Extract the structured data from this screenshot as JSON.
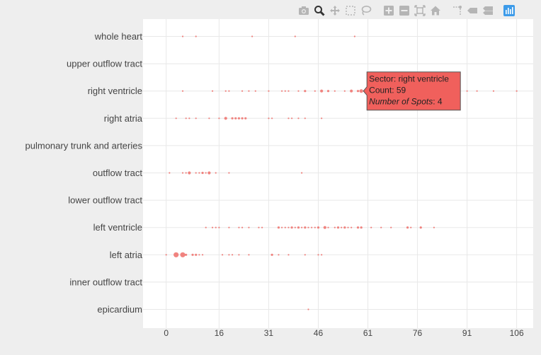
{
  "modebar": {
    "buttons": [
      {
        "name": "camera-icon",
        "title": "Download plot as a png",
        "active": false
      },
      {
        "name": "zoom-icon",
        "title": "Zoom",
        "active": true
      },
      {
        "name": "pan-icon",
        "title": "Pan",
        "active": false
      },
      {
        "name": "box-select-icon",
        "title": "Box Select",
        "active": false
      },
      {
        "name": "lasso-select-icon",
        "title": "Lasso Select",
        "active": false
      },
      {
        "name": "zoom-in-icon",
        "title": "Zoom in",
        "active": false
      },
      {
        "name": "zoom-out-icon",
        "title": "Zoom out",
        "active": false
      },
      {
        "name": "autoscale-icon",
        "title": "Autoscale",
        "active": false
      },
      {
        "name": "reset-axes-icon",
        "title": "Reset axes",
        "active": false
      },
      {
        "name": "spike-lines-icon",
        "title": "Toggle Spike Lines",
        "active": false
      },
      {
        "name": "hover-closest-icon",
        "title": "Show closest data on hover",
        "active": false
      },
      {
        "name": "hover-compare-icon",
        "title": "Compare data on hover",
        "active": false
      },
      {
        "name": "plotly-logo-icon",
        "title": "Produced with Plotly",
        "active": false
      }
    ]
  },
  "colors": {
    "marker": "#ef6f6a",
    "tooltip_bg": "#f0605c",
    "grid": "#e8e8e8",
    "plot_bg": "#ffffff",
    "active_icon": "#333333",
    "icon": "#b5b5b5",
    "logo": "#3d9be9"
  },
  "chart_data": {
    "type": "scatter",
    "x_ticks": [
      0,
      16,
      31,
      46,
      61,
      76,
      91,
      106
    ],
    "xlim": [
      -7,
      111
    ],
    "categories": [
      "whole heart",
      "upper outflow tract",
      "right ventricle",
      "right atria",
      "pulmonary trunk and arteries",
      "outflow tract",
      "lower outflow tract",
      "left ventricle",
      "left atria",
      "inner outflow tract",
      "epicardium"
    ],
    "size_field": "Number of Spots",
    "series": [
      {
        "category": "whole heart",
        "points": [
          [
            5,
            1
          ],
          [
            9,
            1
          ],
          [
            26,
            1
          ],
          [
            39,
            1
          ],
          [
            57,
            1
          ]
        ]
      },
      {
        "category": "upper outflow tract",
        "points": []
      },
      {
        "category": "right ventricle",
        "points": [
          [
            5,
            1
          ],
          [
            14,
            1
          ],
          [
            18,
            1
          ],
          [
            19,
            1
          ],
          [
            23,
            1
          ],
          [
            25,
            1
          ],
          [
            27,
            1
          ],
          [
            31,
            1
          ],
          [
            35,
            1
          ],
          [
            36,
            1
          ],
          [
            37,
            1
          ],
          [
            40,
            1
          ],
          [
            42,
            2
          ],
          [
            45,
            1
          ],
          [
            47,
            3
          ],
          [
            49,
            2
          ],
          [
            51,
            1
          ],
          [
            54,
            1
          ],
          [
            56,
            3
          ],
          [
            58,
            2
          ],
          [
            59,
            4
          ],
          [
            91,
            1
          ],
          [
            94,
            1
          ],
          [
            99,
            1
          ],
          [
            106,
            1
          ]
        ]
      },
      {
        "category": "right atria",
        "points": [
          [
            3,
            1
          ],
          [
            6,
            1
          ],
          [
            7,
            1
          ],
          [
            9,
            1
          ],
          [
            13,
            1
          ],
          [
            16,
            1
          ],
          [
            18,
            3
          ],
          [
            20,
            2
          ],
          [
            21,
            2
          ],
          [
            22,
            2
          ],
          [
            23,
            2
          ],
          [
            24,
            2
          ],
          [
            31,
            1
          ],
          [
            32,
            1
          ],
          [
            37,
            1
          ],
          [
            38,
            1
          ],
          [
            40,
            1
          ],
          [
            42,
            1
          ],
          [
            47,
            1
          ]
        ]
      },
      {
        "category": "pulmonary trunk and arteries",
        "points": []
      },
      {
        "category": "outflow tract",
        "points": [
          [
            1,
            1
          ],
          [
            5,
            1
          ],
          [
            6,
            1
          ],
          [
            7,
            3
          ],
          [
            9,
            1
          ],
          [
            10,
            1
          ],
          [
            11,
            2
          ],
          [
            12,
            1
          ],
          [
            13,
            3
          ],
          [
            15,
            1
          ],
          [
            19,
            1
          ],
          [
            41,
            1
          ]
        ]
      },
      {
        "category": "lower outflow tract",
        "points": []
      },
      {
        "category": "left ventricle",
        "points": [
          [
            12,
            1
          ],
          [
            14,
            1
          ],
          [
            15,
            1
          ],
          [
            16,
            1
          ],
          [
            19,
            1
          ],
          [
            22,
            1
          ],
          [
            23,
            1
          ],
          [
            25,
            1
          ],
          [
            28,
            1
          ],
          [
            29,
            1
          ],
          [
            34,
            2
          ],
          [
            35,
            1
          ],
          [
            36,
            1
          ],
          [
            37,
            1
          ],
          [
            38,
            2
          ],
          [
            39,
            1
          ],
          [
            40,
            2
          ],
          [
            41,
            1
          ],
          [
            42,
            2
          ],
          [
            43,
            1
          ],
          [
            44,
            1
          ],
          [
            45,
            1
          ],
          [
            46,
            2
          ],
          [
            48,
            3
          ],
          [
            49,
            1
          ],
          [
            51,
            1
          ],
          [
            52,
            2
          ],
          [
            53,
            1
          ],
          [
            54,
            2
          ],
          [
            55,
            1
          ],
          [
            56,
            1
          ],
          [
            58,
            2
          ],
          [
            59,
            2
          ],
          [
            62,
            1
          ],
          [
            65,
            1
          ],
          [
            68,
            1
          ],
          [
            73,
            2
          ],
          [
            74,
            1
          ],
          [
            77,
            2
          ],
          [
            81,
            1
          ]
        ]
      },
      {
        "category": "left atria",
        "points": [
          [
            0,
            1
          ],
          [
            3,
            5
          ],
          [
            5,
            5
          ],
          [
            6,
            2
          ],
          [
            8,
            2
          ],
          [
            9,
            2
          ],
          [
            10,
            1
          ],
          [
            11,
            1
          ],
          [
            17,
            1
          ],
          [
            19,
            1
          ],
          [
            20,
            1
          ],
          [
            22,
            1
          ],
          [
            25,
            1
          ],
          [
            32,
            2
          ],
          [
            34,
            1
          ],
          [
            37,
            1
          ],
          [
            42,
            1
          ],
          [
            46,
            1
          ],
          [
            47,
            1
          ]
        ]
      },
      {
        "category": "inner outflow tract",
        "points": []
      },
      {
        "category": "epicardium",
        "points": [
          [
            43,
            1
          ]
        ]
      }
    ]
  },
  "hover": {
    "sector_label": "Sector: right ventricle",
    "count_label": "Count: 59",
    "spots_label": "Number of Spots: 4",
    "spots_key": "Number of Spots",
    "spots_value": ": 4",
    "anchor": {
      "category": "right ventricle",
      "x": 59
    }
  }
}
